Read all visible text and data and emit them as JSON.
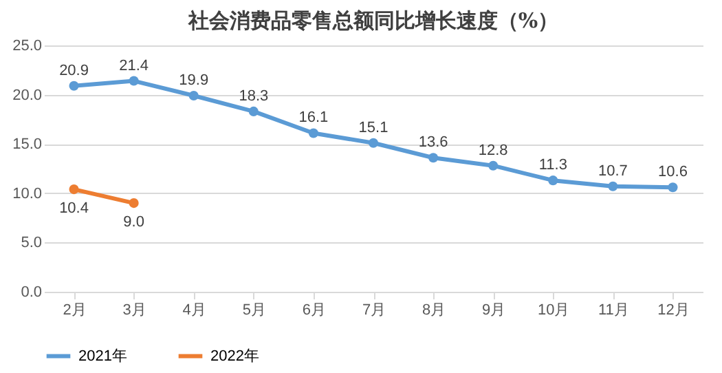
{
  "chart_data": {
    "type": "line",
    "title": "社会消费品零售总额同比增长速度（%）",
    "categories": [
      "2月",
      "3月",
      "4月",
      "5月",
      "6月",
      "7月",
      "8月",
      "9月",
      "10月",
      "11月",
      "12月"
    ],
    "series": [
      {
        "name": "2021年",
        "color": "#5b9bd5",
        "values": [
          20.9,
          21.4,
          19.9,
          18.3,
          16.1,
          15.1,
          13.6,
          12.8,
          11.3,
          10.7,
          10.6
        ],
        "value_labels": [
          "20.9",
          "21.4",
          "19.9",
          "18.3",
          "16.1",
          "15.1",
          "13.6",
          "12.8",
          "11.3",
          "10.7",
          "10.6"
        ]
      },
      {
        "name": "2022年",
        "color": "#ed7d31",
        "values": [
          10.4,
          9.0,
          null,
          null,
          null,
          null,
          null,
          null,
          null,
          null,
          null
        ],
        "value_labels": [
          "10.4",
          "9.0",
          null,
          null,
          null,
          null,
          null,
          null,
          null,
          null,
          null
        ]
      }
    ],
    "ylim": [
      0,
      25
    ],
    "yticks": [
      {
        "value": 0,
        "label": "0.0"
      },
      {
        "value": 5,
        "label": "5.0"
      },
      {
        "value": 10,
        "label": "10.0"
      },
      {
        "value": 15,
        "label": "15.0"
      },
      {
        "value": 20,
        "label": "20.0"
      },
      {
        "value": 25,
        "label": "25.0"
      }
    ],
    "grid": "y",
    "legend": "bottom",
    "marker": "circle",
    "line_style": "solid"
  }
}
